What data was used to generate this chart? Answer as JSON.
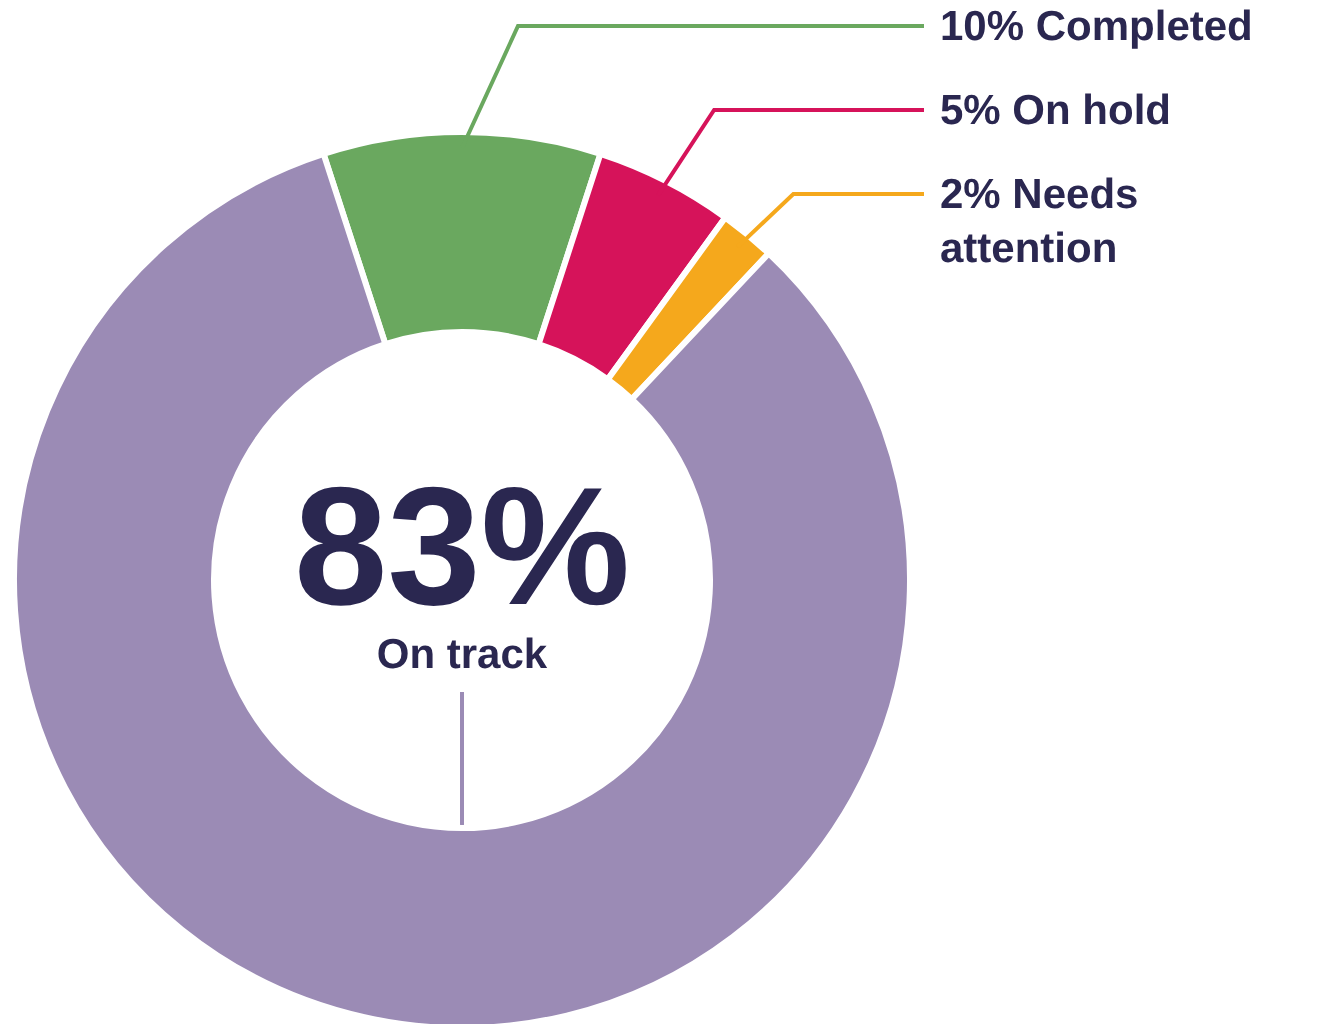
{
  "chart_data": {
    "type": "donut",
    "categories": [
      "Completed",
      "On hold",
      "Needs attention",
      "On track"
    ],
    "values": [
      10,
      5,
      2,
      83
    ],
    "value_labels": [
      "10%",
      "5%",
      "2%",
      "83%"
    ],
    "colors": [
      "#6aa85f",
      "#d6135a",
      "#f5a81c",
      "#9b8bb5"
    ]
  }
}
